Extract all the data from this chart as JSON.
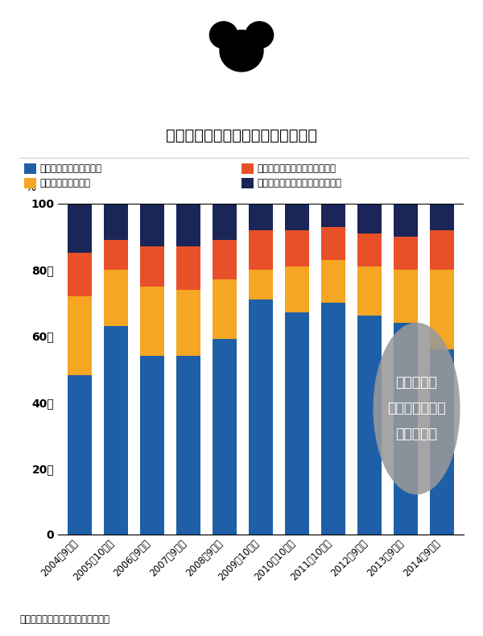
{
  "title": "ディズニーのセグメント別事業利益",
  "years": [
    "2004年9月期",
    "2005年10月期",
    "2006年9月期",
    "2007年9月期",
    "2008年9月期",
    "2009年10月期",
    "2010年10月期",
    "2011年10月期",
    "2012年9月期",
    "2013年9月期",
    "2014年9月期"
  ],
  "seg_order": [
    "メディア・ネットワーク",
    "パークス＆リゾーツ",
    "スタジオ・エンターテイメント",
    "コンシューマ・プロダクツその他"
  ],
  "colors": [
    "#1e5fa8",
    "#f5a623",
    "#e8502a",
    "#1a2558"
  ],
  "data": {
    "メディア・ネットワーク": [
      48,
      63,
      54,
      54,
      59,
      71,
      67,
      70,
      66,
      64,
      56
    ],
    "パークス＆リゾーツ": [
      24,
      17,
      21,
      20,
      18,
      9,
      14,
      13,
      15,
      16,
      24
    ],
    "スタジオ・エンターテイメント": [
      13,
      9,
      12,
      13,
      12,
      12,
      11,
      10,
      10,
      10,
      12
    ],
    "コンシューマ・プロダクツその他": [
      15,
      11,
      13,
      13,
      11,
      8,
      8,
      7,
      9,
      10,
      8
    ]
  },
  "legend_order": [
    [
      "メディア・ネットワーク",
      "#1e5fa8"
    ],
    [
      "スタジオ・エンターテイメント",
      "#e8502a"
    ],
    [
      "パークス＆リゾーツ",
      "#f5a623"
    ],
    [
      "コンシューマ・プロダクツその他",
      "#1a2558"
    ]
  ],
  "annotation_text": "利益の柱は\nメディアネット\nワーク部門",
  "annotation_color": "#999999",
  "source_text": "（出所）会社資料をもとに筆者作成",
  "background_color": "#ffffff",
  "bar_width": 0.65,
  "ylim": [
    0,
    100
  ],
  "ylabel": "%",
  "yticks": [
    0,
    20,
    40,
    60,
    80,
    100
  ],
  "ytick_labels": [
    "0",
    "20－",
    "40－",
    "60－",
    "80－",
    "100"
  ]
}
